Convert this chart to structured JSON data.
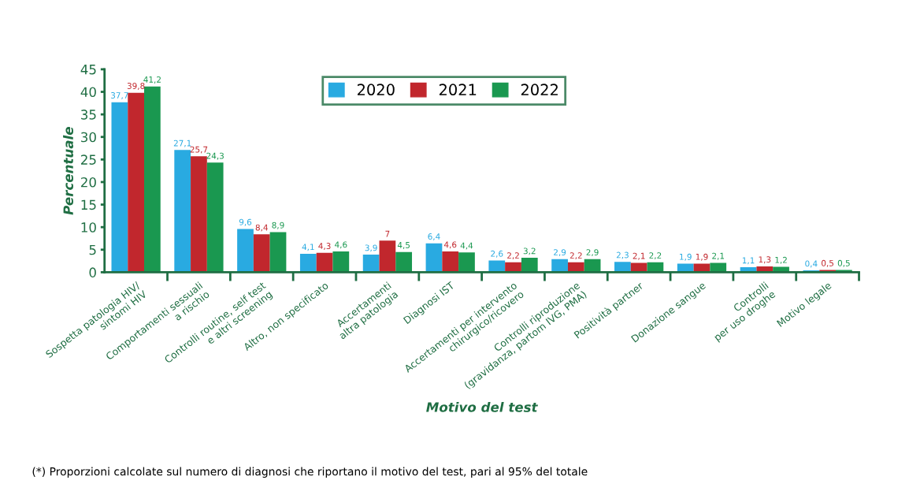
{
  "chart_data": {
    "type": "bar",
    "ylabel": "Percentuale",
    "xlabel": "Motivo del test",
    "categories": [
      "Sospetta patologia HIV/\nsintomi HIV",
      "Comportamenti sessuali\na rischio",
      "Controlli routine, self test\ne altri screening",
      "Altro, non specificato",
      "Accertamenti\naltra patologia",
      "Diagnosi IST",
      "Accertamenti per intervento\nchirurgico/ricovero",
      "Controlli riproduzione\n(gravidanza, partom IVG, PMA)",
      "Positività partner",
      "Donazione sangue",
      "Controlli\nper uso droghe",
      "Motivo legale"
    ],
    "series": [
      {
        "name": "2020",
        "color": "#29aae1",
        "values": [
          37.7,
          27.1,
          9.6,
          4.1,
          3.9,
          6.4,
          2.6,
          2.9,
          2.3,
          1.9,
          1.1,
          0.4
        ],
        "value_labels": [
          "37,7",
          "27,1",
          "9,6",
          "4,1",
          "3,9",
          "6,4",
          "2,6",
          "2,9",
          "2,3",
          "1,9",
          "1,1",
          "0,4"
        ]
      },
      {
        "name": "2021",
        "color": "#c1272d",
        "values": [
          39.8,
          25.7,
          8.4,
          4.3,
          7,
          4.6,
          2.2,
          2.2,
          2.1,
          1.9,
          1.3,
          0.5
        ],
        "value_labels": [
          "39,8",
          "25,7",
          "8,4",
          "4,3",
          "7",
          "4,6",
          "2,2",
          "2,2",
          "2,1",
          "1,9",
          "1,3",
          "0,5"
        ]
      },
      {
        "name": "2022",
        "color": "#1a9850",
        "values": [
          41.2,
          24.3,
          8.9,
          4.6,
          4.5,
          4.4,
          3.2,
          2.9,
          2.2,
          2.1,
          1.2,
          0.5
        ],
        "value_labels": [
          "41,2",
          "24,3",
          "8,9",
          "4,6",
          "4,5",
          "4,4",
          "3,2",
          "2,9",
          "2,2",
          "2,1",
          "1,2",
          "0,5"
        ]
      }
    ],
    "ylim": [
      0,
      45
    ],
    "yticks": [
      0,
      5,
      10,
      15,
      20,
      25,
      30,
      35,
      40,
      45
    ],
    "legend": "top",
    "grid": false,
    "annotations": [
      "(*) Proporzioni calcolate sul numero di diagnosi che riportano il motivo del test, pari al 95% del totale"
    ]
  }
}
